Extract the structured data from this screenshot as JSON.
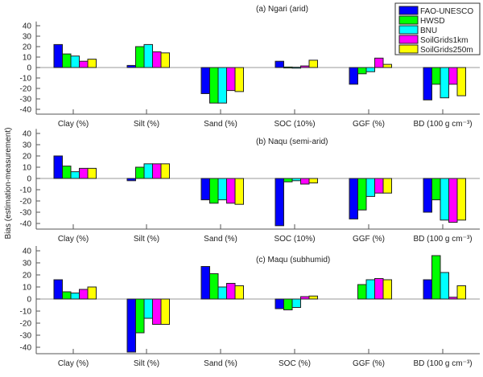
{
  "chart_data": {
    "type": "bar",
    "ylabel": "Bias (estimation-measurement)",
    "ylim": [
      -45,
      45
    ],
    "yticks": [
      40,
      30,
      20,
      10,
      0,
      -10,
      -20,
      -30,
      -40
    ],
    "grid": false,
    "legend_position": "top-right",
    "legend": [
      {
        "name": "FAO-UNESCO",
        "color": "#0000ff"
      },
      {
        "name": "HWSD",
        "color": "#00ff00"
      },
      {
        "name": "BNU",
        "color": "#00ffff"
      },
      {
        "name": "SoilGrids1km",
        "color": "#ff00ff"
      },
      {
        "name": "SoilGrids250m",
        "color": "#ffff00"
      }
    ],
    "panels": [
      {
        "title": "(a) Ngari (arid)",
        "categories": [
          "Clay (%)",
          "Silt (%)",
          "Sand (%)",
          "SOC (10%)",
          "GGF (%)",
          "BD (100 g cm⁻³)"
        ],
        "series": [
          {
            "name": "FAO-UNESCO",
            "values": [
              22,
              2,
              -25,
              6,
              -16,
              -31
            ]
          },
          {
            "name": "HWSD",
            "values": [
              13,
              20,
              -34,
              0.5,
              -6,
              -16
            ]
          },
          {
            "name": "BNU",
            "values": [
              11,
              22,
              -34,
              0.3,
              -4,
              -29
            ]
          },
          {
            "name": "SoilGrids1km",
            "values": [
              6,
              15,
              -22,
              1.5,
              9,
              -16
            ]
          },
          {
            "name": "SoilGrids250m",
            "values": [
              8,
              14,
              -23,
              7,
              3,
              -27
            ]
          }
        ]
      },
      {
        "title": "(b) Naqu (semi-arid)",
        "categories": [
          "Clay (%)",
          "Silt (%)",
          "Sand (%)",
          "SOC (10%)",
          "GGF (%)",
          "BD  (100 g cm⁻³)"
        ],
        "series": [
          {
            "name": "FAO-UNESCO",
            "values": [
              20,
              -2,
              -19,
              -42,
              -36,
              -30
            ]
          },
          {
            "name": "HWSD",
            "values": [
              11,
              10,
              -22,
              -3,
              -28,
              -19
            ]
          },
          {
            "name": "BNU",
            "values": [
              6,
              13,
              -19,
              -2,
              -16,
              -37
            ]
          },
          {
            "name": "SoilGrids1km",
            "values": [
              9,
              13,
              -22,
              -5,
              -13,
              -39
            ]
          },
          {
            "name": "SoilGrids250m",
            "values": [
              9,
              13,
              -23,
              -4,
              -13,
              -37
            ]
          }
        ]
      },
      {
        "title": "(c) Maqu (subhumid)",
        "categories": [
          "Clay (%)",
          "Silt (%)",
          "Sand (%)",
          "SOC (%)",
          "GGF (%)",
          "BD (100 g cm⁻³)"
        ],
        "series": [
          {
            "name": "FAO-UNESCO",
            "values": [
              16,
              -44,
              27,
              -8,
              0,
              16
            ]
          },
          {
            "name": "HWSD",
            "values": [
              6,
              -28,
              21,
              -9,
              12,
              36
            ]
          },
          {
            "name": "BNU",
            "values": [
              5,
              -16,
              10,
              -7,
              16,
              22
            ]
          },
          {
            "name": "SoilGrids1km",
            "values": [
              8,
              -21,
              13,
              2,
              17,
              1.5
            ]
          },
          {
            "name": "SoilGrids250m",
            "values": [
              10,
              -21,
              11,
              2.5,
              16,
              11
            ]
          }
        ]
      }
    ]
  }
}
